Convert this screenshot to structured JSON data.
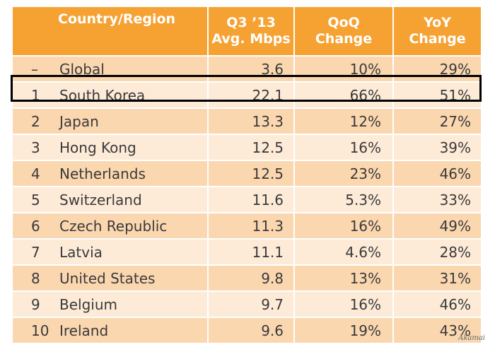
{
  "chart_data": {
    "type": "table",
    "columns": [
      "Country/Region",
      "Q3 ’13 Avg. Mbps",
      "QoQ Change",
      "YoY Change"
    ],
    "header": {
      "country_region": "Country/Region",
      "avg_line1": "Q3 ’13",
      "avg_line2": "Avg. Mbps",
      "qoq_line1": "QoQ",
      "qoq_line2": "Change",
      "yoy_line1": "YoY",
      "yoy_line2": "Change"
    },
    "rows": [
      {
        "rank": "–",
        "country": "Global",
        "avg_mbps": "3.6",
        "qoq": "10%",
        "yoy": "29%"
      },
      {
        "rank": "1",
        "country": "South Korea",
        "avg_mbps": "22.1",
        "qoq": "66%",
        "yoy": "51%"
      },
      {
        "rank": "2",
        "country": "Japan",
        "avg_mbps": "13.3",
        "qoq": "12%",
        "yoy": "27%"
      },
      {
        "rank": "3",
        "country": "Hong Kong",
        "avg_mbps": "12.5",
        "qoq": "16%",
        "yoy": "39%"
      },
      {
        "rank": "4",
        "country": "Netherlands",
        "avg_mbps": "12.5",
        "qoq": "23%",
        "yoy": "46%"
      },
      {
        "rank": "5",
        "country": "Switzerland",
        "avg_mbps": "11.6",
        "qoq": "5.3%",
        "yoy": "33%"
      },
      {
        "rank": "6",
        "country": "Czech Republic",
        "avg_mbps": "11.3",
        "qoq": "16%",
        "yoy": "49%"
      },
      {
        "rank": "7",
        "country": "Latvia",
        "avg_mbps": "11.1",
        "qoq": "4.6%",
        "yoy": "28%"
      },
      {
        "rank": "8",
        "country": "United States",
        "avg_mbps": "9.8",
        "qoq": "13%",
        "yoy": "31%"
      },
      {
        "rank": "9",
        "country": "Belgium",
        "avg_mbps": "9.7",
        "qoq": "16%",
        "yoy": "46%"
      },
      {
        "rank": "10",
        "country": "Ireland",
        "avg_mbps": "9.6",
        "qoq": "19%",
        "yoy": "43%"
      }
    ],
    "highlighted_country": "South Korea"
  },
  "source": "Akamai",
  "colors": {
    "header": "#f5a233",
    "row_dark": "#fbd7b0",
    "row_light": "#fdebd8",
    "text": "#3a3a3a",
    "highlight_border": "#000000"
  }
}
